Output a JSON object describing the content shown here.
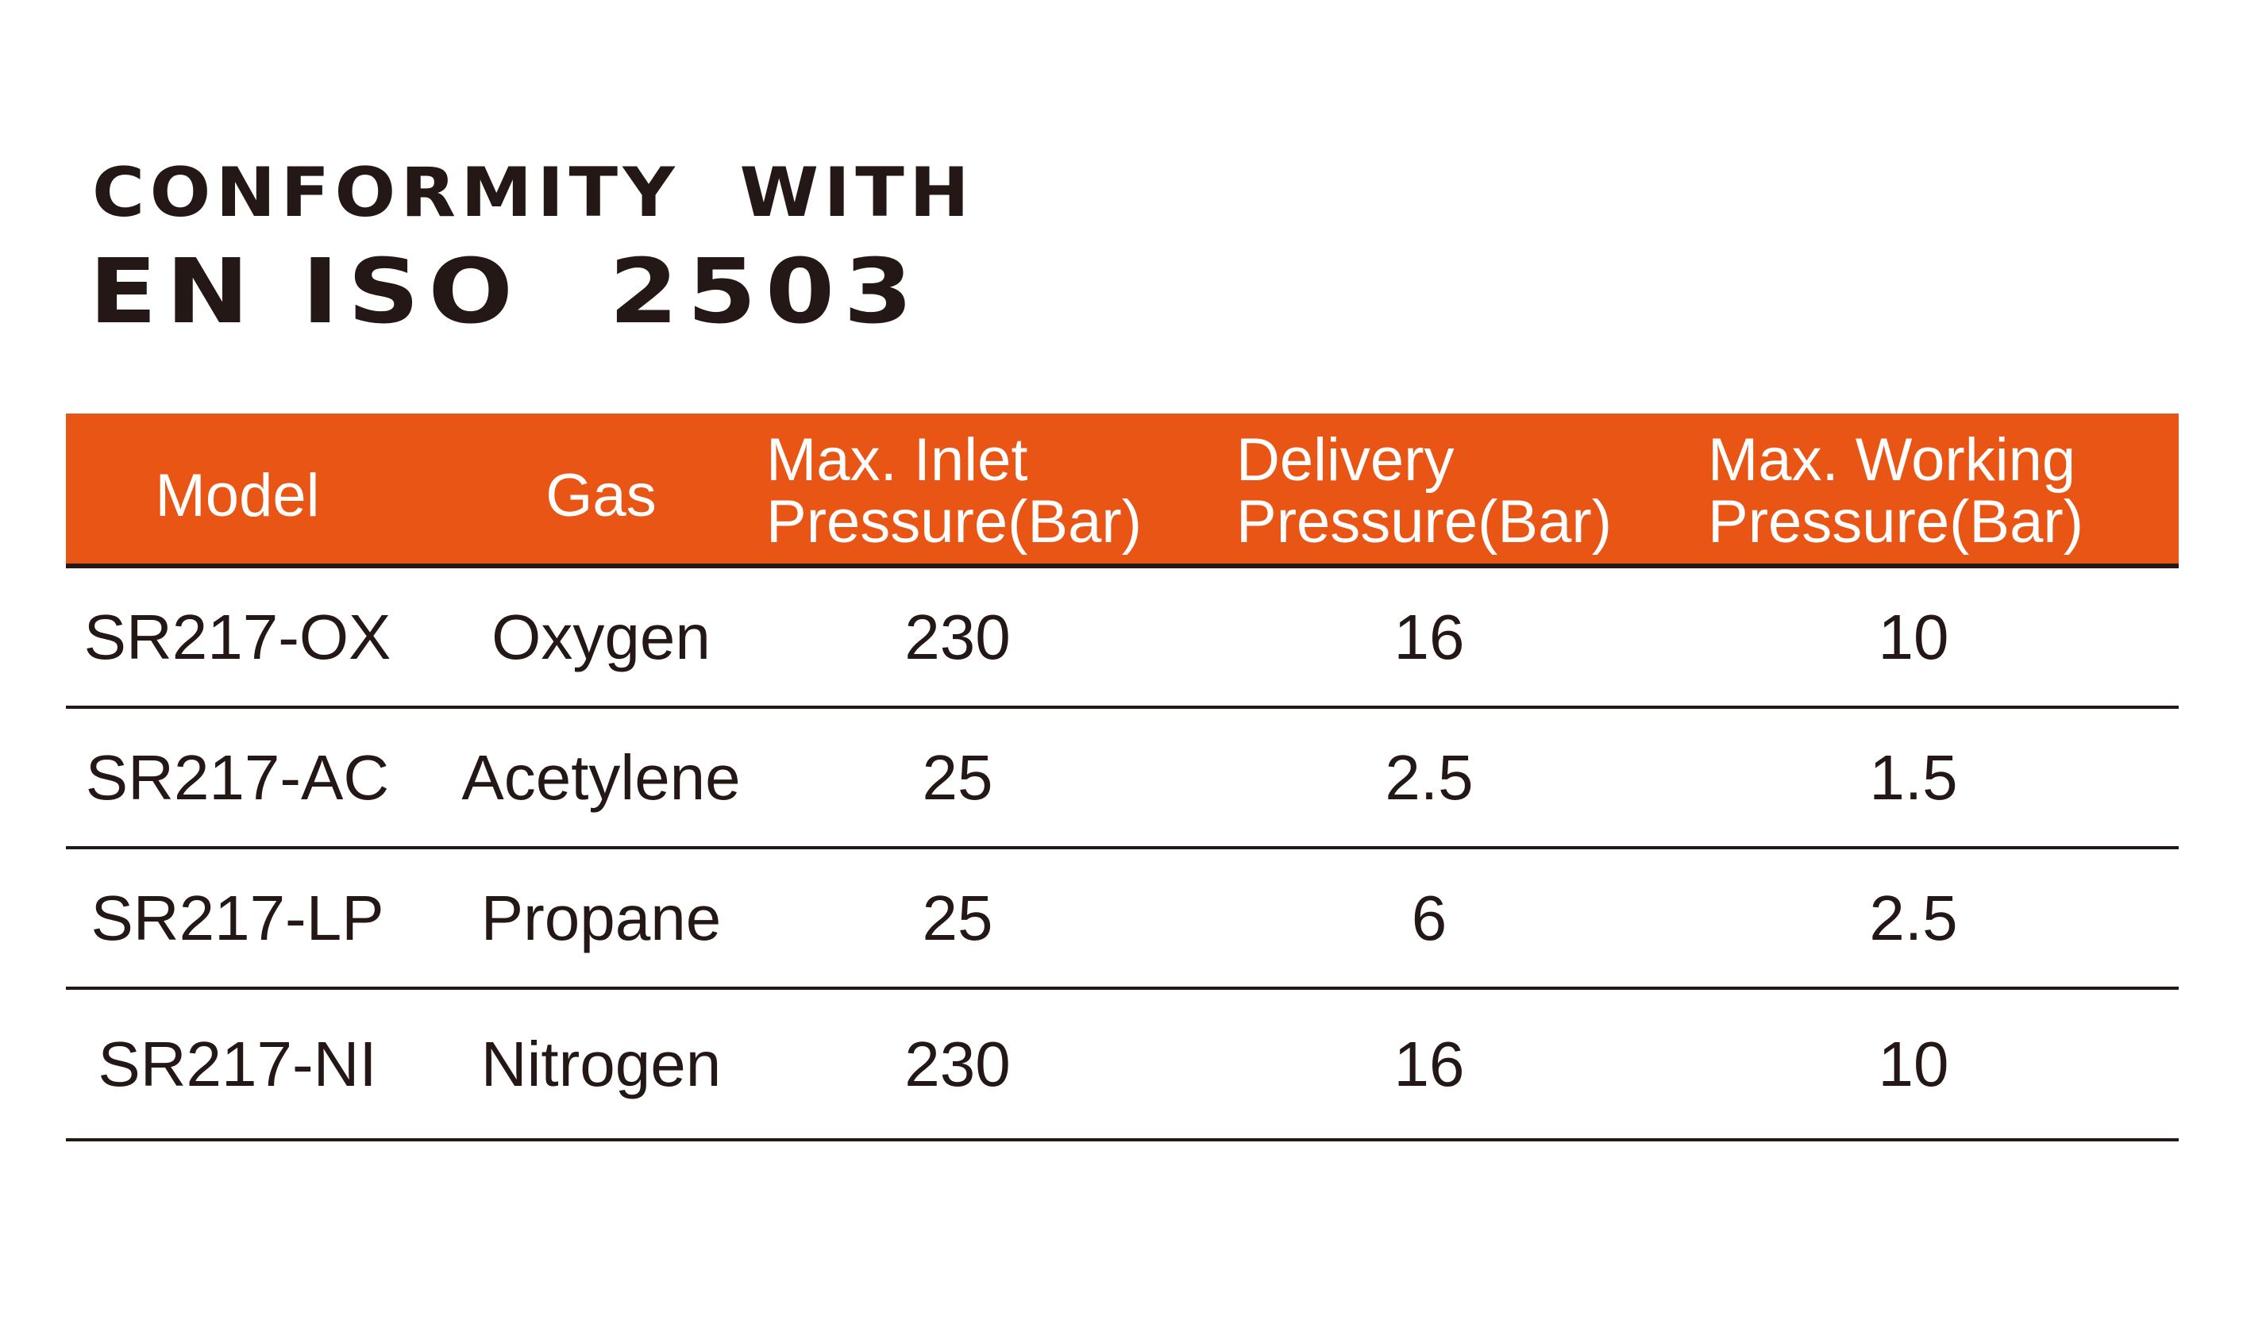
{
  "heading": {
    "line1": "CONFORMITY  WITH",
    "line2": "EN ISO  2503"
  },
  "colors": {
    "header_bg": "#e85515",
    "text": "#231815",
    "header_text": "#ffffff"
  },
  "table": {
    "headers": [
      {
        "line1": "Model",
        "line2": ""
      },
      {
        "line1": "Gas",
        "line2": ""
      },
      {
        "line1": "Max. Inlet",
        "line2": "Pressure(Bar)"
      },
      {
        "line1": "Delivery",
        "line2": "Pressure(Bar)"
      },
      {
        "line1": "Max. Working",
        "line2": "Pressure(Bar)"
      }
    ],
    "rows": [
      [
        "SR217-OX",
        "Oxygen",
        "230",
        "16",
        "10"
      ],
      [
        "SR217-AC",
        "Acetylene",
        "25",
        "2.5",
        "1.5"
      ],
      [
        "SR217-LP",
        "Propane",
        "25",
        "6",
        "2.5"
      ],
      [
        "SR217-NI",
        "Nitrogen",
        "230",
        "16",
        "10"
      ]
    ]
  }
}
